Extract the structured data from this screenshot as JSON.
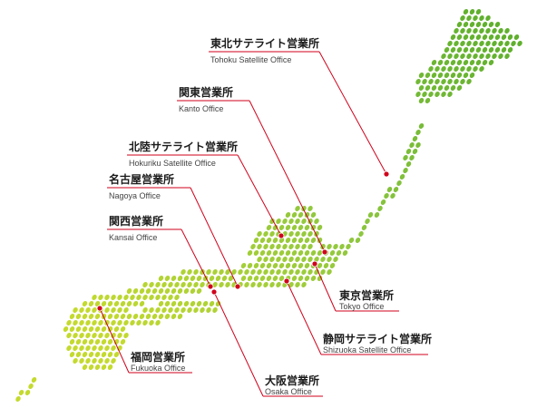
{
  "colors": {
    "land_north": "#5cae2c",
    "land_mid": "#8cc63f",
    "land_south": "#c4da2e",
    "marker": "#d0021b",
    "leader_line": "#d0021b",
    "text": "#1a1a1a",
    "text_en": "#444444"
  },
  "offices": [
    {
      "id": "tohoku",
      "name_ja": "東北サテライト営業所",
      "name_en": "Tohoku Satellite Office"
    },
    {
      "id": "kanto",
      "name_ja": "関東営業所",
      "name_en": "Kanto Office"
    },
    {
      "id": "hokuriku",
      "name_ja": "北陸サテライト営業所",
      "name_en": "Hokuriku Satellite Office"
    },
    {
      "id": "nagoya",
      "name_ja": "名古屋営業所",
      "name_en": "Nagoya Office"
    },
    {
      "id": "kansai",
      "name_ja": "関西営業所",
      "name_en": "Kansai Office"
    },
    {
      "id": "tokyo",
      "name_ja": "東京営業所",
      "name_en": "Tokyo Office"
    },
    {
      "id": "shizuoka",
      "name_ja": "静岡サテライト営業所",
      "name_en": "Shizuoka Satellite Office"
    },
    {
      "id": "fukuoka",
      "name_ja": "福岡営業所",
      "name_en": "Fukuoka Office"
    },
    {
      "id": "osaka",
      "name_ja": "大阪営業所",
      "name_en": "Osaka Office"
    }
  ]
}
